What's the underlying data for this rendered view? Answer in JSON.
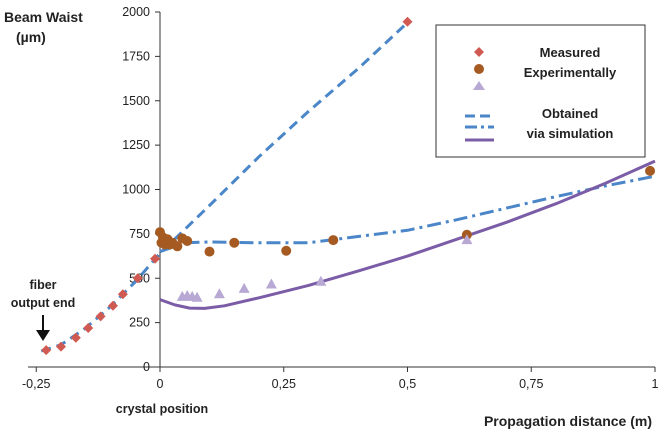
{
  "chart_data": {
    "type": "scatter",
    "xlabel": "Propagation distance (m)",
    "ylabel_line1": "Beam Waist",
    "ylabel_line2": "(µm)",
    "xlim": [
      -0.25,
      1.0
    ],
    "ylim": [
      0,
      2000
    ],
    "x_ticks": [
      "-0,25",
      "0",
      "0,25",
      "0,5",
      "0,75",
      "1"
    ],
    "y_ticks": [
      "2000",
      "1750",
      "1500",
      "1250",
      "1000",
      "750",
      "500",
      "250",
      "0"
    ],
    "legend": {
      "placement": "top-right",
      "measured_line1": "Measured",
      "measured_line2": "Experimentally",
      "sim_line1": "Obtained",
      "sim_line2": "via simulation"
    },
    "annotations": {
      "fiber_line1": "fiber",
      "fiber_line2": "output end",
      "crystal": "crystal position"
    },
    "colors": {
      "diamond": "#d05a52",
      "circle": "#a55a22",
      "triangle": "#b7a9d4",
      "dashed": "#4a86c8",
      "dashdot": "#4a86c8",
      "solid": "#7b5ca7"
    },
    "series": [
      {
        "marker": "diamond",
        "points": [
          [
            -0.23,
            95
          ],
          [
            -0.2,
            115
          ],
          [
            -0.17,
            165
          ],
          [
            -0.145,
            220
          ],
          [
            -0.12,
            285
          ],
          [
            -0.095,
            345
          ],
          [
            -0.075,
            410
          ],
          [
            -0.045,
            500
          ],
          [
            -0.01,
            610
          ],
          [
            0.5,
            1945
          ]
        ]
      },
      {
        "marker": "circle",
        "points": [
          [
            0.0,
            760
          ],
          [
            0.003,
            700
          ],
          [
            0.006,
            730
          ],
          [
            0.01,
            690
          ],
          [
            0.015,
            720
          ],
          [
            0.02,
            690
          ],
          [
            0.025,
            700
          ],
          [
            0.035,
            680
          ],
          [
            0.045,
            725
          ],
          [
            0.055,
            710
          ],
          [
            0.1,
            650
          ],
          [
            0.15,
            700
          ],
          [
            0.255,
            655
          ],
          [
            0.35,
            715
          ],
          [
            0.62,
            745
          ],
          [
            0.99,
            1105
          ]
        ]
      },
      {
        "marker": "triangle",
        "points": [
          [
            0.045,
            395
          ],
          [
            0.055,
            400
          ],
          [
            0.065,
            395
          ],
          [
            0.075,
            390
          ],
          [
            0.12,
            410
          ],
          [
            0.17,
            440
          ],
          [
            0.225,
            465
          ],
          [
            0.325,
            480
          ],
          [
            0.62,
            715
          ]
        ]
      },
      {
        "line": "dashed",
        "points": [
          [
            -0.24,
            90
          ],
          [
            -0.2,
            125
          ],
          [
            -0.15,
            220
          ],
          [
            -0.1,
            340
          ],
          [
            -0.05,
            480
          ],
          [
            0.0,
            640
          ],
          [
            0.1,
            910
          ],
          [
            0.2,
            1185
          ],
          [
            0.3,
            1440
          ],
          [
            0.4,
            1680
          ],
          [
            0.5,
            1940
          ]
        ]
      },
      {
        "line": "dashdot",
        "points": [
          [
            0.0,
            650
          ],
          [
            0.05,
            700
          ],
          [
            0.1,
            705
          ],
          [
            0.2,
            700
          ],
          [
            0.3,
            700
          ],
          [
            0.4,
            735
          ],
          [
            0.5,
            770
          ],
          [
            0.6,
            830
          ],
          [
            0.7,
            895
          ],
          [
            0.8,
            960
          ],
          [
            0.9,
            1020
          ],
          [
            1.0,
            1075
          ]
        ]
      },
      {
        "line": "solid",
        "points": [
          [
            0.0,
            380
          ],
          [
            0.03,
            350
          ],
          [
            0.06,
            332
          ],
          [
            0.09,
            330
          ],
          [
            0.13,
            345
          ],
          [
            0.2,
            390
          ],
          [
            0.3,
            460
          ],
          [
            0.4,
            540
          ],
          [
            0.5,
            625
          ],
          [
            0.6,
            720
          ],
          [
            0.7,
            815
          ],
          [
            0.8,
            920
          ],
          [
            0.9,
            1035
          ],
          [
            1.0,
            1160
          ]
        ]
      }
    ]
  }
}
